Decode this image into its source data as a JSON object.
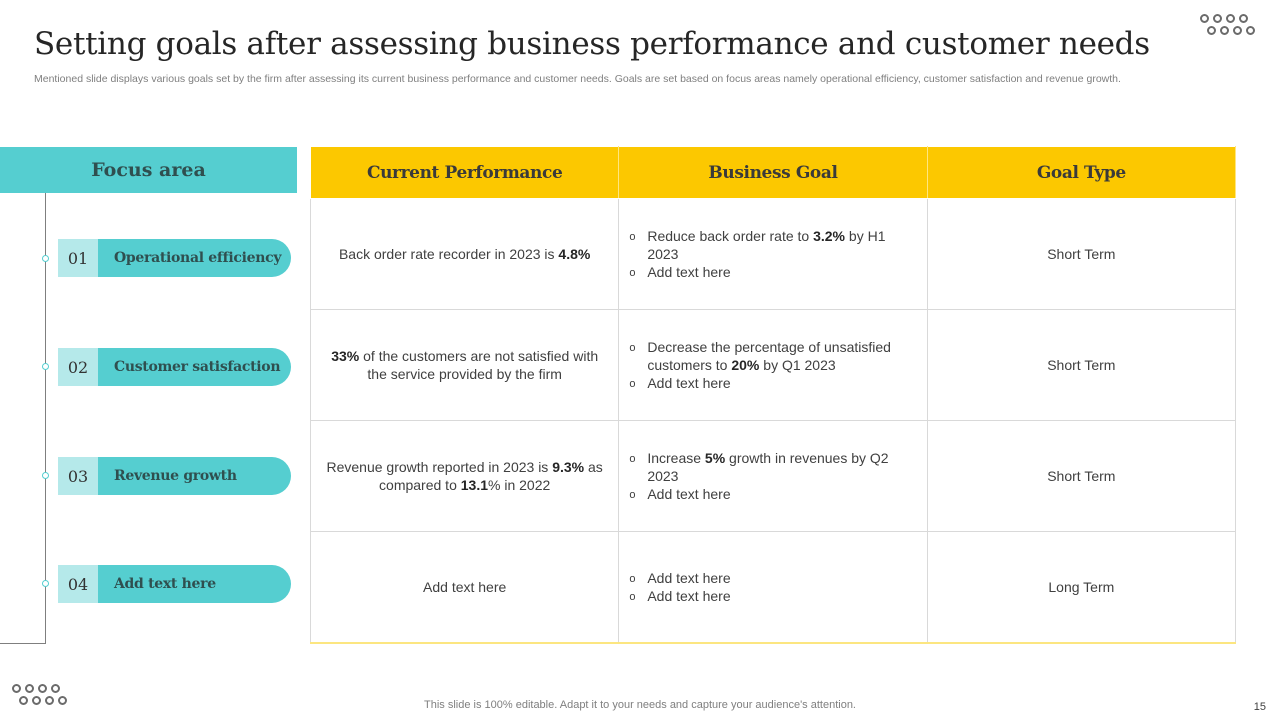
{
  "title": "Setting goals after assessing business performance and customer needs",
  "subtitle": "Mentioned slide displays various goals set by the firm after assessing its current business performance and customer needs. Goals are set based on focus areas namely operational efficiency, customer satisfaction and revenue growth.",
  "focus": {
    "header": "Focus area",
    "items": [
      {
        "num": "01",
        "label": "Operational efficiency"
      },
      {
        "num": "02",
        "label": "Customer satisfaction"
      },
      {
        "num": "03",
        "label": "Revenue growth"
      },
      {
        "num": "04",
        "label": "Add text here"
      }
    ]
  },
  "table": {
    "headers": [
      "Current Performance",
      "Business Goal",
      "Goal Type"
    ],
    "rows": [
      {
        "current": {
          "pre": "Back order rate recorder in 2023 is ",
          "bold": "4.8%",
          "post": ""
        },
        "goal": [
          {
            "pre": "Reduce back order rate to ",
            "bold": "3.2%",
            "post": " by H1 2023"
          },
          {
            "pre": "Add text here",
            "bold": "",
            "post": ""
          }
        ],
        "type": "Short Term"
      },
      {
        "current": {
          "pre": "",
          "bold": "33%",
          "post": " of the customers are not satisfied with the service provided by the firm"
        },
        "goal": [
          {
            "pre": "Decrease the percentage of unsatisfied customers to ",
            "bold": "20%",
            "post": " by Q1 2023"
          },
          {
            "pre": "Add text here",
            "bold": "",
            "post": ""
          }
        ],
        "type": "Short Term"
      },
      {
        "current": {
          "pre": "Revenue growth reported in 2023 is ",
          "bold": "9.3%",
          "post": " as compared to ",
          "bold2": "13.1",
          "post2": "% in 2022"
        },
        "goal": [
          {
            "pre": "Increase ",
            "bold": "5%",
            "post": " growth in revenues by Q2 2023"
          },
          {
            "pre": "Add text here",
            "bold": "",
            "post": ""
          }
        ],
        "type": "Short Term"
      },
      {
        "current": {
          "pre": "Add text here",
          "bold": "",
          "post": ""
        },
        "goal": [
          {
            "pre": "Add text here",
            "bold": "",
            "post": ""
          },
          {
            "pre": "Add text here",
            "bold": "",
            "post": ""
          }
        ],
        "type": "Long Term"
      }
    ]
  },
  "footer": "This slide is 100% editable. Adapt it to your needs and capture your audience's attention.",
  "page_number": "15"
}
